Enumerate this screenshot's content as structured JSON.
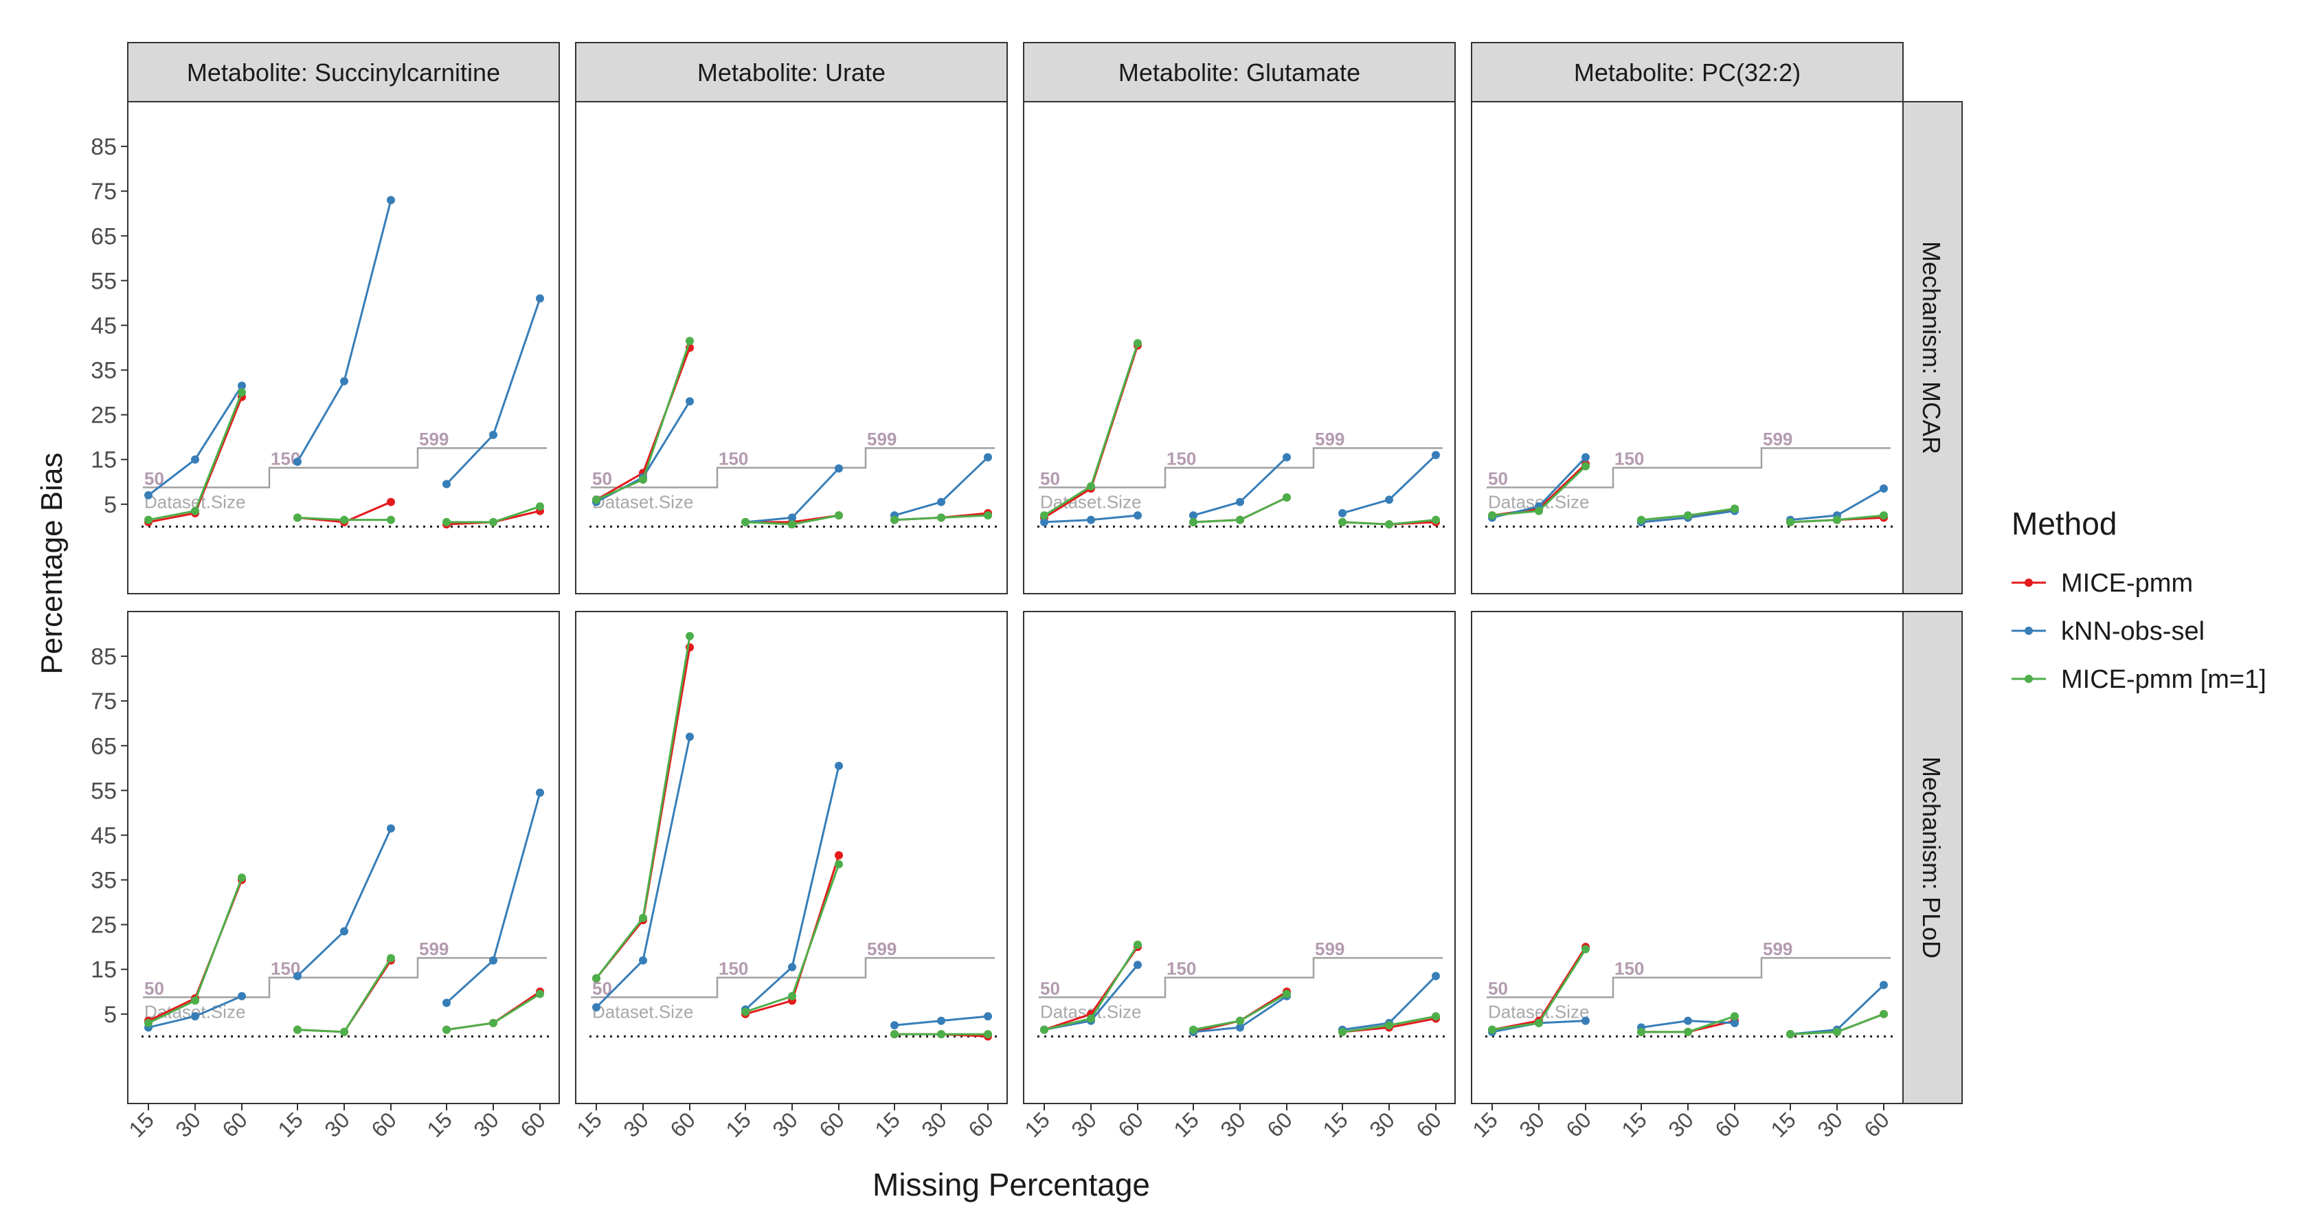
{
  "chart_data": {
    "type": "line",
    "xlabel": "Missing Percentage",
    "ylabel": "Percentage Bias",
    "ylim": [
      -15,
      95
    ],
    "yticks": [
      5,
      15,
      25,
      35,
      45,
      55,
      65,
      75,
      85
    ],
    "facet_columns": [
      "Metabolite: Succinylcarnitine",
      "Metabolite: Urate",
      "Metabolite: Glutamate",
      "Metabolite: PC(32:2)"
    ],
    "facet_rows": [
      "Mechanism: MCAR",
      "Mechanism: PLoD"
    ],
    "x_groups": [
      {
        "dataset_size": "50",
        "missing_pct": [
          "15",
          "30",
          "60"
        ]
      },
      {
        "dataset_size": "150",
        "missing_pct": [
          "15",
          "30",
          "60"
        ]
      },
      {
        "dataset_size": "599",
        "missing_pct": [
          "15",
          "30",
          "60"
        ]
      }
    ],
    "dataset_size_label": "Dataset.Size",
    "reference_line_y": 0,
    "legend": {
      "title": "Method",
      "position": "right",
      "entries": [
        {
          "name": "MICE-pmm",
          "color": "#e41a1c"
        },
        {
          "name": "kNN-obs-sel",
          "color": "#377eb8"
        },
        {
          "name": "MICE-pmm [m=1]",
          "color": "#4daf4a"
        }
      ]
    },
    "panels": [
      {
        "row": 0,
        "col": 0,
        "series": {
          "MICE-pmm": [
            [
              1,
              3,
              29
            ],
            [
              2,
              1,
              5.5
            ],
            [
              0.5,
              1,
              3.5
            ]
          ],
          "kNN-obs-sel": [
            [
              7,
              15,
              31.5
            ],
            [
              14.5,
              32.5,
              73
            ],
            [
              9.5,
              20.5,
              51
            ]
          ],
          "MICE-pmm [m=1]": [
            [
              1.5,
              3.5,
              30
            ],
            [
              2,
              1.5,
              1.5
            ],
            [
              1,
              1,
              4.5
            ]
          ]
        }
      },
      {
        "row": 0,
        "col": 1,
        "series": {
          "MICE-pmm": [
            [
              6,
              12,
              40
            ],
            [
              1,
              1,
              2.5
            ],
            [
              1.5,
              2,
              3
            ]
          ],
          "kNN-obs-sel": [
            [
              5.5,
              11,
              28
            ],
            [
              1,
              2,
              13
            ],
            [
              2.5,
              5.5,
              15.5
            ]
          ],
          "MICE-pmm [m=1]": [
            [
              6,
              10.5,
              41.5
            ],
            [
              1,
              0.5,
              2.5
            ],
            [
              1.5,
              2,
              2.5
            ]
          ]
        }
      },
      {
        "row": 0,
        "col": 2,
        "series": {
          "MICE-pmm": [
            [
              2,
              8.5,
              40.5
            ],
            [
              1,
              1.5,
              6.5
            ],
            [
              1,
              0.5,
              1
            ]
          ],
          "kNN-obs-sel": [
            [
              1,
              1.5,
              2.5
            ],
            [
              2.5,
              5.5,
              15.5
            ],
            [
              3,
              6,
              16
            ]
          ],
          "MICE-pmm [m=1]": [
            [
              2.5,
              9,
              41
            ],
            [
              1,
              1.5,
              6.5
            ],
            [
              1,
              0.5,
              1.5
            ]
          ]
        }
      },
      {
        "row": 0,
        "col": 3,
        "series": {
          "MICE-pmm": [
            [
              2.5,
              4,
              14
            ],
            [
              1,
              2,
              4
            ],
            [
              1,
              1.5,
              2
            ]
          ],
          "kNN-obs-sel": [
            [
              2,
              4.5,
              15.5
            ],
            [
              1,
              2,
              3.5
            ],
            [
              1.5,
              2.5,
              8.5
            ]
          ],
          "MICE-pmm [m=1]": [
            [
              2.5,
              3.5,
              13.5
            ],
            [
              1.5,
              2.5,
              4
            ],
            [
              1,
              1.5,
              2.5
            ]
          ]
        }
      },
      {
        "row": 1,
        "col": 0,
        "series": {
          "MICE-pmm": [
            [
              3.5,
              8.5,
              35
            ],
            [
              1.5,
              1,
              17
            ],
            [
              1.5,
              3,
              10
            ]
          ],
          "kNN-obs-sel": [
            [
              2,
              4.5,
              9
            ],
            [
              13.5,
              23.5,
              46.5
            ],
            [
              7.5,
              17,
              54.5
            ]
          ],
          "MICE-pmm [m=1]": [
            [
              3,
              8,
              35.5
            ],
            [
              1.5,
              1,
              17.5
            ],
            [
              1.5,
              3,
              9.5
            ]
          ]
        }
      },
      {
        "row": 1,
        "col": 1,
        "series": {
          "MICE-pmm": [
            [
              13,
              26,
              87
            ],
            [
              5,
              8,
              40.5
            ],
            [
              0.5,
              0.5,
              0
            ]
          ],
          "kNN-obs-sel": [
            [
              6.5,
              17,
              67
            ],
            [
              6,
              15.5,
              60.5
            ],
            [
              2.5,
              3.5,
              4.5
            ]
          ],
          "MICE-pmm [m=1]": [
            [
              13,
              26.5,
              89.5
            ],
            [
              5.5,
              9,
              38.5
            ],
            [
              0.5,
              0.5,
              0.5
            ]
          ]
        }
      },
      {
        "row": 1,
        "col": 2,
        "series": {
          "MICE-pmm": [
            [
              1.5,
              5,
              20
            ],
            [
              1,
              3.5,
              10
            ],
            [
              1,
              2,
              4
            ]
          ],
          "kNN-obs-sel": [
            [
              1.5,
              3.5,
              16
            ],
            [
              1,
              2,
              9
            ],
            [
              1.5,
              3,
              13.5
            ]
          ],
          "MICE-pmm [m=1]": [
            [
              1.5,
              4,
              20.5
            ],
            [
              1.5,
              3.5,
              9.5
            ],
            [
              1,
              2.5,
              4.5
            ]
          ]
        }
      },
      {
        "row": 1,
        "col": 3,
        "series": {
          "MICE-pmm": [
            [
              1.5,
              3.5,
              20
            ],
            [
              1,
              1,
              3.5
            ],
            [
              0.5,
              1,
              5
            ]
          ],
          "kNN-obs-sel": [
            [
              1,
              3,
              3.5
            ],
            [
              2,
              3.5,
              3
            ],
            [
              0.5,
              1.5,
              11.5
            ]
          ],
          "MICE-pmm [m=1]": [
            [
              1.5,
              3,
              19.5
            ],
            [
              1,
              1,
              4.5
            ],
            [
              0.5,
              1,
              5
            ]
          ]
        }
      }
    ]
  }
}
